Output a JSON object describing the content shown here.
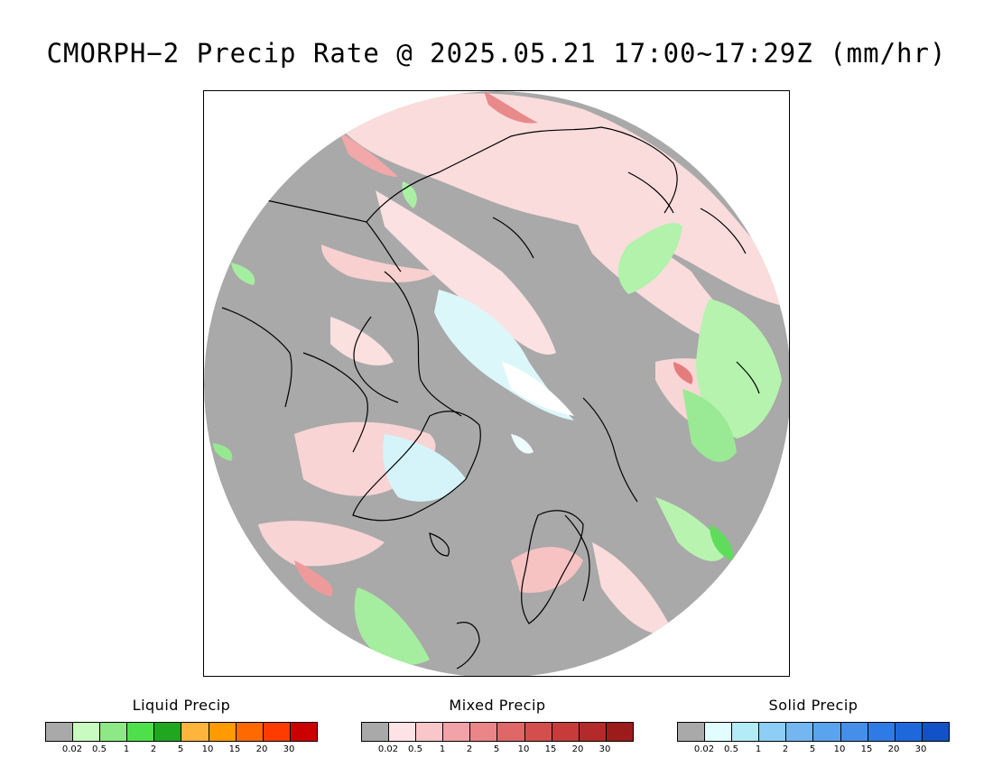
{
  "title": "CMORPH−2 Precip Rate @ 2025.05.21 17:00~17:29Z (mm/hr)",
  "map": {
    "projection": "north-polar-stereographic",
    "background_color": "#a9a9a9",
    "coastline_color": "#000000",
    "colors": {
      "liquid_light": "#b7f2b0",
      "liquid_mid": "#8fe88a",
      "liquid_strong": "#47d948",
      "mixed_light": "#fde0e0",
      "mixed_mid": "#f6b8b8",
      "mixed_strong": "#d86060",
      "solid_light": "#dff9fb"
    }
  },
  "legends": [
    {
      "id": "liquid",
      "title": "Liquid Precip",
      "colors": [
        "#a9a9a9",
        "#c9fac0",
        "#8ee886",
        "#4de04b",
        "#1fa71f",
        "#ffb43c",
        "#ff9a00",
        "#ff6a00",
        "#ff3c00",
        "#cc0000"
      ],
      "ticks": [
        "0.02",
        "0.5",
        "1",
        "2",
        "5",
        "10",
        "15",
        "20",
        "30"
      ]
    },
    {
      "id": "mixed",
      "title": "Mixed Precip",
      "colors": [
        "#a9a9a9",
        "#fde3e6",
        "#f9c6ca",
        "#f2a3a8",
        "#ea8588",
        "#df6767",
        "#d54e4e",
        "#c83b3b",
        "#b42a2a",
        "#9e1b1b"
      ],
      "ticks": [
        "0.02",
        "0.5",
        "1",
        "2",
        "5",
        "10",
        "15",
        "20",
        "30"
      ]
    },
    {
      "id": "solid",
      "title": "Solid Precip",
      "colors": [
        "#a9a9a9",
        "#e2fdff",
        "#b3ecf6",
        "#8ecdf5",
        "#73b6f2",
        "#5aa3ee",
        "#448fea",
        "#2f7be6",
        "#1e68dc",
        "#1152c8"
      ],
      "ticks": [
        "0.02",
        "0.5",
        "1",
        "2",
        "5",
        "10",
        "15",
        "20",
        "30"
      ]
    }
  ]
}
